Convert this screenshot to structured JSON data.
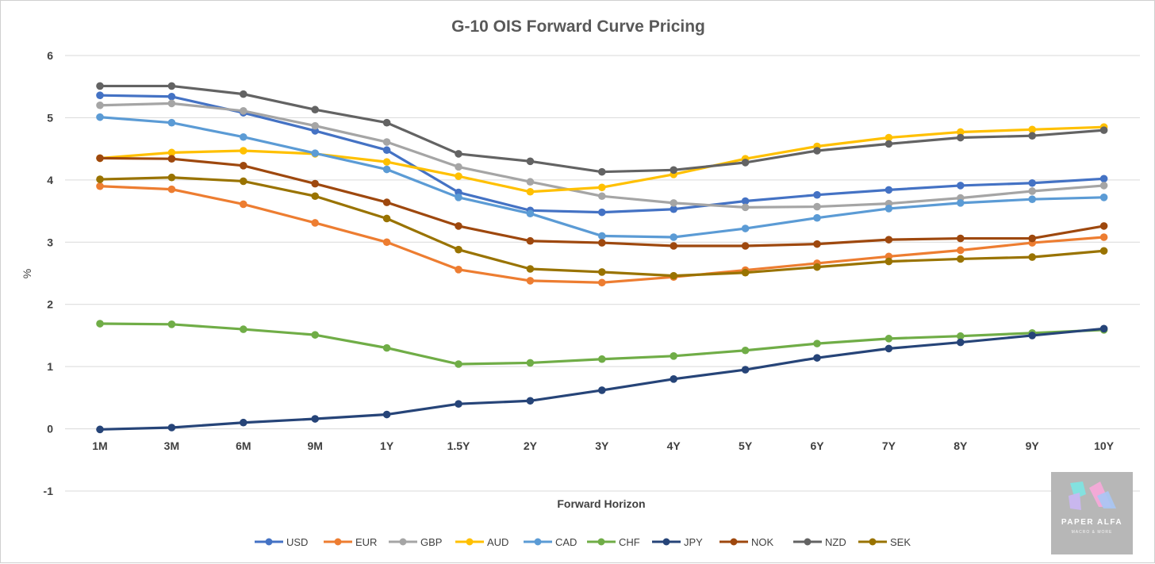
{
  "chart_data": {
    "type": "line",
    "title": "G-10 OIS Forward Curve Pricing",
    "xlabel": "Forward Horizon",
    "ylabel": "%",
    "categories": [
      "1M",
      "3M",
      "6M",
      "9M",
      "1Y",
      "1.5Y",
      "2Y",
      "3Y",
      "4Y",
      "5Y",
      "6Y",
      "7Y",
      "8Y",
      "9Y",
      "10Y"
    ],
    "ylim": [
      -1,
      6
    ],
    "yticks": [
      "-1",
      "0",
      "1",
      "2",
      "3",
      "4",
      "5",
      "6"
    ],
    "grid": "horizontal",
    "legend_position": "bottom",
    "series": [
      {
        "name": "USD",
        "color": "#4472c4",
        "values": [
          5.36,
          5.34,
          5.08,
          4.79,
          4.48,
          3.8,
          3.51,
          3.48,
          3.53,
          3.66,
          3.76,
          3.84,
          3.91,
          3.95,
          4.02
        ]
      },
      {
        "name": "EUR",
        "color": "#ed7d31",
        "values": [
          3.9,
          3.85,
          3.61,
          3.31,
          3.0,
          2.56,
          2.38,
          2.35,
          2.44,
          2.55,
          2.66,
          2.77,
          2.87,
          2.99,
          3.08
        ]
      },
      {
        "name": "GBP",
        "color": "#a5a5a5",
        "values": [
          5.2,
          5.23,
          5.11,
          4.87,
          4.61,
          4.21,
          3.97,
          3.74,
          3.63,
          3.56,
          3.57,
          3.62,
          3.71,
          3.82,
          3.91
        ]
      },
      {
        "name": "AUD",
        "color": "#ffc000",
        "values": [
          4.35,
          4.44,
          4.47,
          4.42,
          4.29,
          4.06,
          3.81,
          3.88,
          4.09,
          4.34,
          4.54,
          4.68,
          4.77,
          4.81,
          4.85
        ]
      },
      {
        "name": "CAD",
        "color": "#5b9bd5",
        "values": [
          5.01,
          4.92,
          4.69,
          4.43,
          4.17,
          3.72,
          3.46,
          3.1,
          3.08,
          3.22,
          3.39,
          3.54,
          3.63,
          3.69,
          3.72
        ]
      },
      {
        "name": "CHF",
        "color": "#70ad47",
        "values": [
          1.69,
          1.68,
          1.6,
          1.51,
          1.3,
          1.04,
          1.06,
          1.12,
          1.17,
          1.26,
          1.37,
          1.45,
          1.49,
          1.54,
          1.59
        ]
      },
      {
        "name": "JPY",
        "color": "#264478",
        "values": [
          -0.01,
          0.02,
          0.1,
          0.16,
          0.23,
          0.4,
          0.45,
          0.62,
          0.8,
          0.95,
          1.14,
          1.29,
          1.39,
          1.5,
          1.61
        ]
      },
      {
        "name": "NOK",
        "color": "#9e480e",
        "values": [
          4.35,
          4.34,
          4.23,
          3.94,
          3.64,
          3.26,
          3.02,
          2.99,
          2.94,
          2.94,
          2.97,
          3.04,
          3.06,
          3.06,
          3.26
        ]
      },
      {
        "name": "NZD",
        "color": "#636363",
        "values": [
          5.51,
          5.51,
          5.38,
          5.13,
          4.92,
          4.42,
          4.3,
          4.13,
          4.16,
          4.28,
          4.47,
          4.58,
          4.68,
          4.71,
          4.8
        ]
      },
      {
        "name": "SEK",
        "color": "#997300",
        "values": [
          4.01,
          4.04,
          3.98,
          3.74,
          3.38,
          2.88,
          2.57,
          2.52,
          2.46,
          2.51,
          2.6,
          2.69,
          2.73,
          2.76,
          2.86
        ]
      }
    ]
  },
  "logo": {
    "name": "PAPER ALFA",
    "tagline": "MACRO & MORE"
  }
}
